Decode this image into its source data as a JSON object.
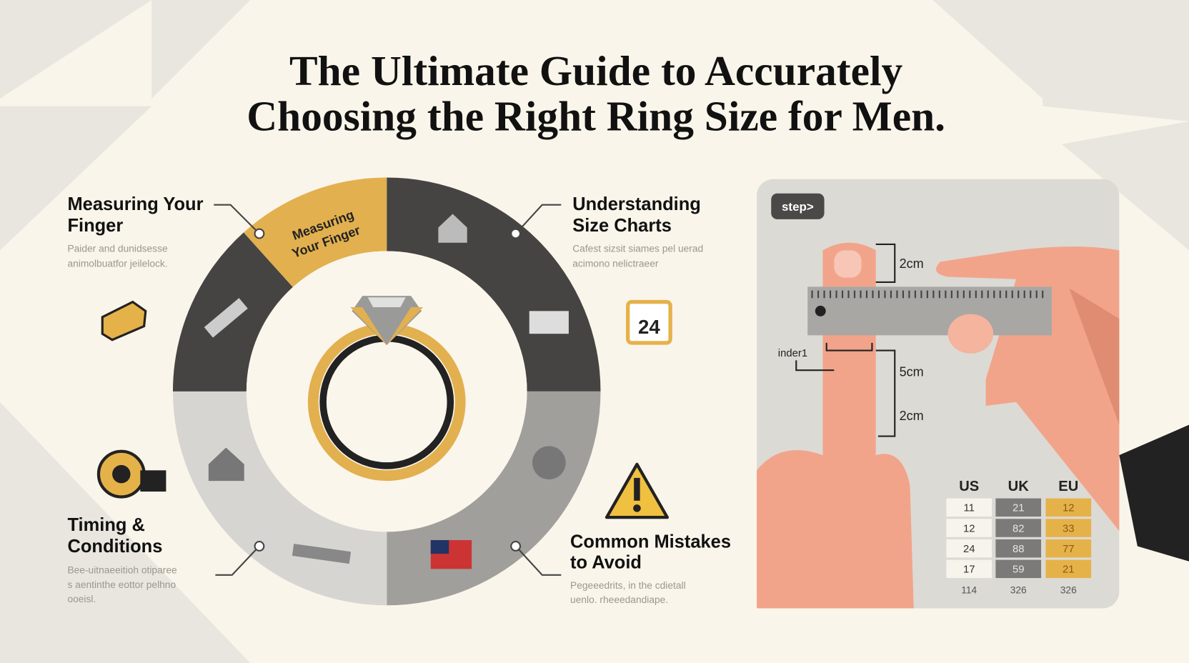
{
  "title": [
    "The Ultimate Guide to Accurately",
    "Choosing the Right Ring Size for Men."
  ],
  "wheel_label": [
    "Measuring",
    "Your Finger"
  ],
  "sections": [
    {
      "heading": [
        "Measuring Your",
        "Finger"
      ],
      "body": [
        "Paider and dunidsesse",
        "animolbuatfor jeilelock."
      ]
    },
    {
      "heading": [
        "Understanding",
        "Size Charts"
      ],
      "body": [
        "Cafest sizsit siames  pel uerad",
        "acimono nelictraeer"
      ]
    },
    {
      "heading": [
        "Timing &",
        "Conditions"
      ],
      "body": [
        "Bee-uitnaeeitioh otiparee",
        "s aentinthe eottor pelhno",
        "ooeisl."
      ]
    },
    {
      "heading": [
        "Common Mistakes",
        "to Avoid"
      ],
      "body": [
        "Pegeeedrits, in the cdietall",
        "uenlo. rheeedandiape."
      ]
    }
  ],
  "calendar_day": "24",
  "panel": {
    "tag": "step>",
    "measures": [
      "2cm",
      "5cm",
      "2cm"
    ],
    "finger_label": "inder1",
    "table": {
      "header": [
        "US",
        "UK",
        "EU"
      ],
      "rows": [
        [
          "11",
          "21",
          "12"
        ],
        [
          "12",
          "82",
          "33"
        ],
        [
          "24",
          "88",
          "77"
        ],
        [
          "17",
          "59",
          "21"
        ]
      ],
      "footer": [
        "114",
        "326",
        "326"
      ]
    }
  }
}
